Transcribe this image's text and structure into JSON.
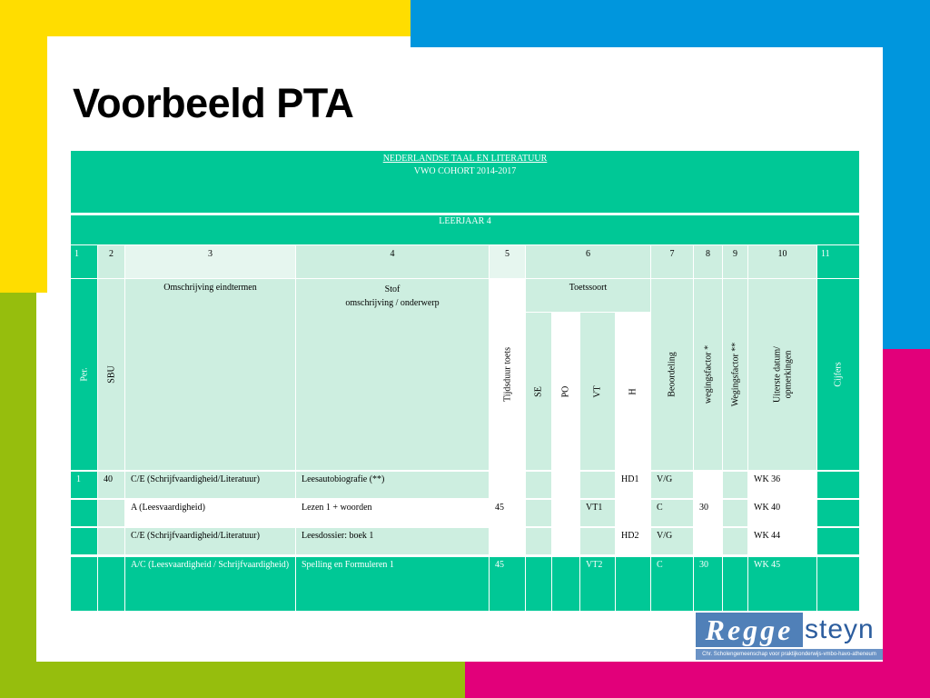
{
  "slide": {
    "title": "Voorbeeld PTA"
  },
  "header": {
    "subject": "NEDERLANDSE TAAL EN LITERATUUR",
    "cohort": "VWO COHORT 2014-2017",
    "year": "LEERJAAR 4"
  },
  "columns": {
    "numbers": [
      "1",
      "2",
      "3",
      "4",
      "5",
      "6",
      "7",
      "8",
      "9",
      "10",
      "11"
    ],
    "per": "Per.",
    "sbu": "SBU",
    "omschrijving": "Omschrijving eindtermen",
    "stof": "Stof",
    "stof_sub": "omschrijving / onderwerp",
    "tijdsduur": "Tijdsduur toets",
    "toetssoort": "Toetssoort",
    "se": "SE",
    "po": "PO",
    "vt": "VT",
    "h": "H",
    "beoordeling": "Beoordeling",
    "wegingsfactor1": "wegingsfactor *",
    "wegingsfactor2": "Wegingsfactor **",
    "uiterste_line1": "Uiterste datum/",
    "uiterste_line2": "opmerkingen",
    "cijfers": "Cijfers"
  },
  "rows": [
    {
      "per": "1",
      "sbu": "40",
      "omschrijving": "C/E (Schrijfvaardigheid/Literatuur)",
      "stof": "Leesautobiografie (**)",
      "tijdsduur": "",
      "se": "",
      "po": "",
      "vt": "",
      "h": "HD1",
      "beoordeling": "V/G",
      "w1": "",
      "w2": "",
      "datum": "WK 36",
      "cijfers": ""
    },
    {
      "per": "",
      "sbu": "",
      "omschrijving": "A (Leesvaardigheid)",
      "stof": "Lezen 1 + woorden",
      "tijdsduur": "45",
      "se": "",
      "po": "",
      "vt": "VT1",
      "h": "",
      "beoordeling": "C",
      "w1": "30",
      "w2": "",
      "datum": "WK 40",
      "cijfers": ""
    },
    {
      "per": "",
      "sbu": "",
      "omschrijving": "C/E (Schrijfvaardigheid/Literatuur)",
      "stof": "Leesdossier: boek 1",
      "tijdsduur": "",
      "se": "",
      "po": "",
      "vt": "",
      "h": "HD2",
      "beoordeling": "V/G",
      "w1": "",
      "w2": "",
      "datum": "WK 44",
      "cijfers": ""
    },
    {
      "per": "",
      "sbu": "",
      "omschrijving": "A/C (Leesvaardigheid / Schrijfvaardigheid)",
      "stof": "Spelling en Formuleren 1",
      "tijdsduur": "45",
      "se": "",
      "po": "",
      "vt": "VT2",
      "h": "",
      "beoordeling": "C",
      "w1": "30",
      "w2": "",
      "datum": "WK 45",
      "cijfers": ""
    }
  ],
  "logo": {
    "part1": "Regge",
    "part2": "steyn",
    "subtitle": "Chr. Scholengemeenschap voor praktijkonderwijs-vmbo-havo-atheneum"
  },
  "colors": {
    "teal": "#00c896",
    "pale": "#cdeee0",
    "yellow": "#ffdd00",
    "blue": "#0096dd",
    "green": "#96be0d",
    "pink": "#e2007a"
  }
}
